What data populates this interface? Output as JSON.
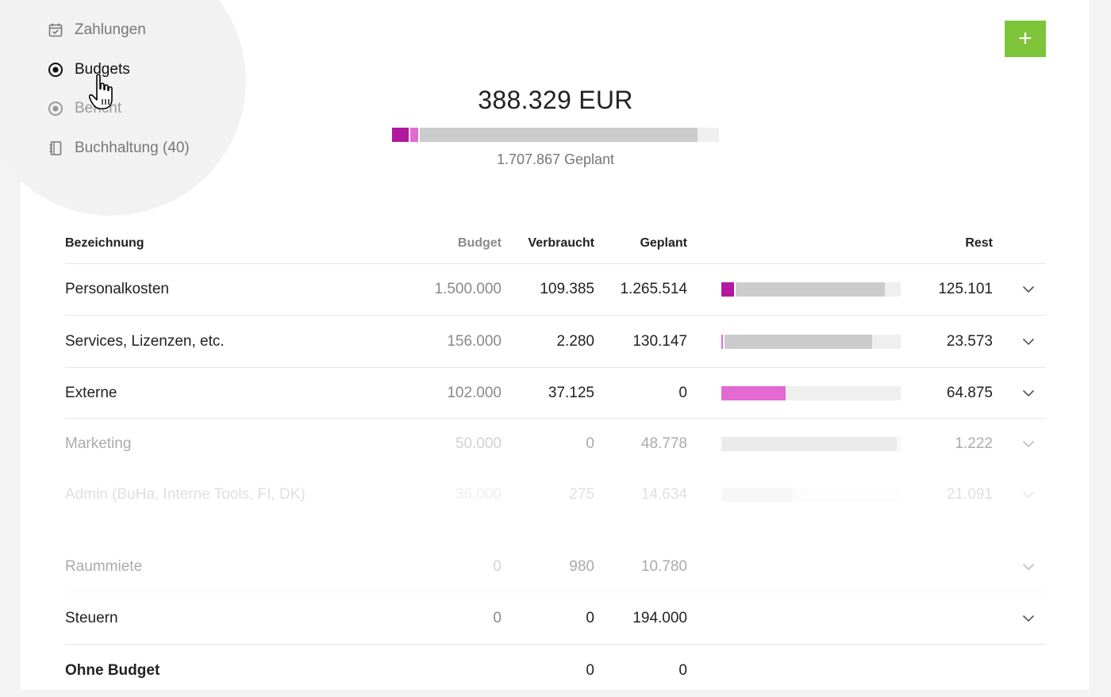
{
  "nav": {
    "items": [
      {
        "label": "Zahlungen",
        "icon": "calendar-check-icon",
        "state": "normal"
      },
      {
        "label": "Budgets",
        "icon": "target-icon",
        "state": "active"
      },
      {
        "label": "Bericht",
        "icon": "target-icon",
        "state": "dim"
      },
      {
        "label": "Buchhaltung (40)",
        "icon": "notebook-icon",
        "state": "normal"
      }
    ]
  },
  "add_button": {
    "label": "+"
  },
  "summary": {
    "total": "388.329 EUR",
    "planned": "1.707.867 Geplant",
    "bar": [
      {
        "fraction": 0.05,
        "color": "#b3179f"
      },
      {
        "fraction": 0.03,
        "color": "#e36ad0"
      },
      {
        "fraction": 0.855,
        "color": "#cccccc"
      }
    ]
  },
  "table": {
    "headers": {
      "name": "Bezeichnung",
      "budget": "Budget",
      "verbraucht": "Verbraucht",
      "geplant": "Geplant",
      "rest": "Rest"
    },
    "rows": [
      {
        "name": "Personalkosten",
        "budget": "1.500.000",
        "verbraucht": "109.385",
        "geplant": "1.265.514",
        "rest": "125.101",
        "chevron": true,
        "bar": [
          {
            "fraction": 0.07,
            "color": "#b3179f"
          },
          {
            "fraction": 0.84,
            "color": "#cccccc"
          }
        ]
      },
      {
        "name": "Services, Lizenzen, etc.",
        "budget": "156.000",
        "verbraucht": "2.280",
        "geplant": "130.147",
        "rest": "23.573",
        "chevron": true,
        "bar": [
          {
            "fraction": 0.01,
            "color": "#e36ad0"
          },
          {
            "fraction": 0.83,
            "color": "#cccccc"
          }
        ]
      },
      {
        "name": "Externe",
        "budget": "102.000",
        "verbraucht": "37.125",
        "geplant": "0",
        "rest": "64.875",
        "chevron": true,
        "bar": [
          {
            "fraction": 0.36,
            "color": "#e36ad0"
          }
        ]
      },
      {
        "name": "Marketing",
        "budget": "50.000",
        "verbraucht": "0",
        "geplant": "48.778",
        "rest": "1.222",
        "chevron": true,
        "style": "faded",
        "bar": [
          {
            "fraction": 0.98,
            "color": "#cccccc"
          }
        ]
      },
      {
        "name": "Admin (BuHa, Interne Tools, FI, DK)",
        "budget": "36.000",
        "verbraucht": "275",
        "geplant": "14.634",
        "rest": "21.091",
        "chevron": true,
        "style": "faded2",
        "bar": [
          {
            "fraction": 0.4,
            "color": "#cccccc"
          }
        ]
      },
      {
        "name": "Raummiete",
        "budget": "0",
        "verbraucht": "980",
        "geplant": "10.780",
        "rest": "",
        "chevron": true,
        "style": "faded"
      },
      {
        "name": "Steuern",
        "budget": "0",
        "verbraucht": "0",
        "geplant": "194.000",
        "rest": "",
        "chevron": true
      },
      {
        "name": "Ohne Budget",
        "budget": "",
        "verbraucht": "0",
        "geplant": "0",
        "rest": "",
        "chevron": false,
        "style": "bold"
      }
    ]
  }
}
